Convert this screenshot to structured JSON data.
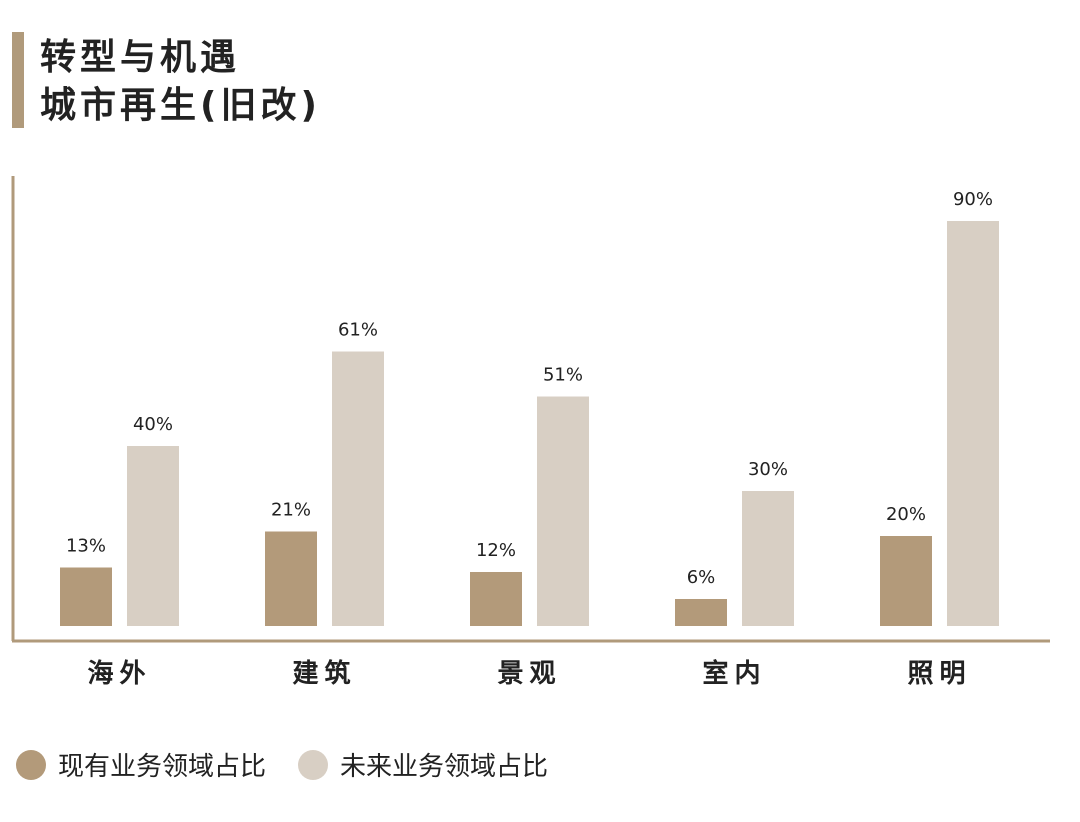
{
  "title": {
    "line1": "转型与机遇",
    "line2": "城市再生(旧改)"
  },
  "colors": {
    "accent": "#b09a7b",
    "series_current": "#b39a7a",
    "series_future": "#d8cfc4",
    "axis": "#b09a7b"
  },
  "chart_data": {
    "type": "bar",
    "categories": [
      "海外",
      "建筑",
      "景观",
      "室内",
      "照明"
    ],
    "series": [
      {
        "name": "现有业务领域占比",
        "values": [
          13,
          21,
          12,
          6,
          20
        ]
      },
      {
        "name": "未来业务领域占比",
        "values": [
          40,
          61,
          51,
          30,
          90
        ]
      }
    ],
    "value_suffix": "%",
    "ylim": [
      0,
      100
    ],
    "grid": false,
    "legend": "bottom-left",
    "title": "转型与机遇 城市再生(旧改)"
  }
}
